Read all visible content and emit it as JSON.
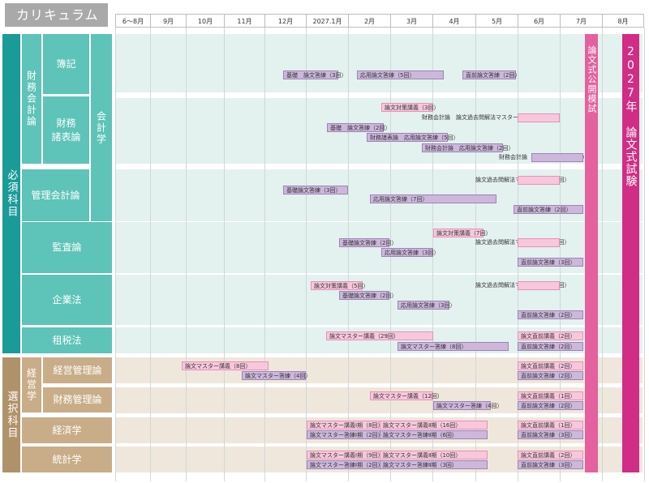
{
  "title": "カリキュラム",
  "months": [
    "6～8月",
    "9月",
    "10月",
    "11月",
    "12月",
    "2027.1月",
    "2月",
    "3月",
    "4月",
    "5月",
    "6月",
    "7月",
    "8月"
  ],
  "vertical_bars": {
    "mock": "論文式公開模試",
    "exam": "2027年 論文式試験"
  },
  "categories": {
    "required": "必須科目",
    "elective": "選択科目"
  },
  "groups": {
    "financial": "財務会計論",
    "accounting": "会計学",
    "management": "経営学"
  },
  "subjects": {
    "boki": "簿記",
    "zaimu": "財務\n諸表論",
    "kanri": "管理会計論",
    "kansa": "監査論",
    "kigyo": "企業法",
    "sozei": "租税法",
    "keiei_kanri": "経営管理論",
    "zaimu_kanri": "財務管理論",
    "keizai": "経済学",
    "tokei": "統計学"
  },
  "items": [
    "基礎　論文答練（3回）",
    "応用論文答練（5回）",
    "直前論文答練（2回）",
    "論文対策講義（3回）",
    "財務会計論　論文過去問解法マスター講義（1回）",
    "基礎　論文答練（2回）",
    "財務諸表論　応用論文答練（5回）",
    "財務会計論　応用論文答練（2回）",
    "財務会計論　直前論文答練（2回）",
    "論文過去問解法マスター講義（1回）",
    "基礎論文答練（3回）",
    "応用論文答練（7回）",
    "直前論文答練（2回）",
    "論文対策講義（7回）",
    "基礎論文答練（2回）",
    "論文過去問解法マスター講義（1回）",
    "応用論文答練（3回）",
    "直前論文答練（3回）",
    "論文対策講義（5回）",
    "論文過去問解法マスター講義（1回）",
    "基礎論文答練（2回）",
    "応用論文答練（3回）",
    "直前論文答練（2回）",
    "論文マスター講義（29回）",
    "論文直前講義（2回）",
    "論文マスター答練（8回）",
    "直前論文答練（2回）",
    "論文マスター講義（8回）",
    "論文直前講義（2回）",
    "論文マスター答練（4回）",
    "直前論文答練（2回）",
    "論文マスター講義（12回）",
    "論文直前講義（1回）",
    "論文マスター答練（4回）",
    "直前論文答練（2回）",
    "論文マスター講義Ⅰ期（8回）",
    "論文マスター講義Ⅱ期（16回）",
    "論文直前講義（1回）",
    "論文マスター答練Ⅰ期（2回）",
    "論文マスター答練Ⅱ期（6回）",
    "直前論文答練（3回）",
    "論文マスター講義Ⅰ期（9回）",
    "論文マスター講義Ⅱ期（10回）",
    "論文直前講義（2回）",
    "論文マスター答練Ⅰ期（2回）",
    "論文マスター答練Ⅱ期（3回）",
    "直前論文答練（3回）"
  ],
  "colors": {
    "required": "#1a9b98",
    "required_light": "#5ec3b8",
    "elective": "#b0926a",
    "elective_light": "#c8ad88",
    "pink_bar": "#e4609e",
    "magenta_bar": "#d12c86"
  }
}
